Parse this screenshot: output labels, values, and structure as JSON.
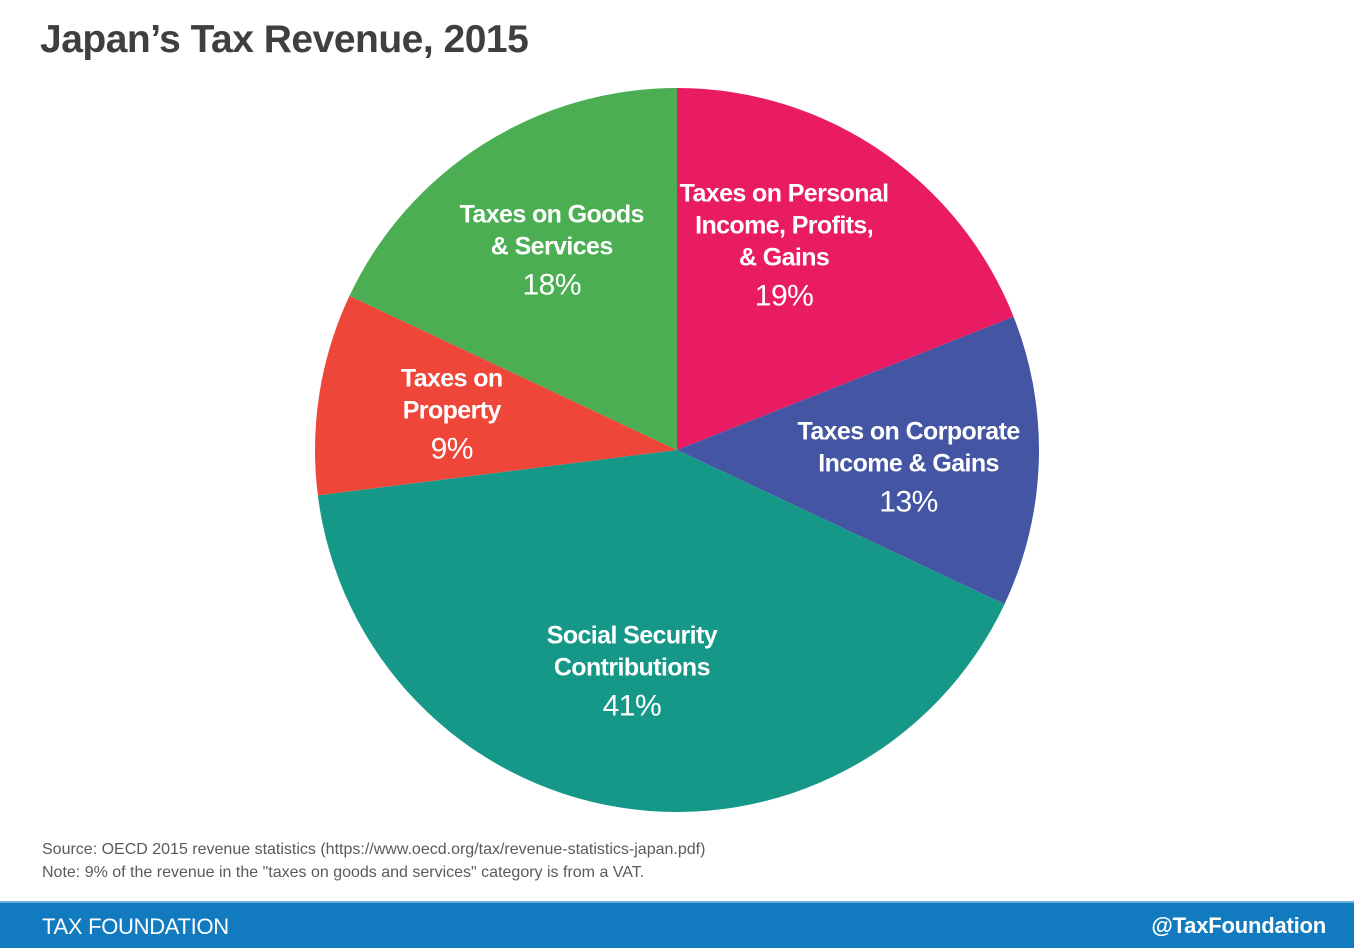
{
  "title": "Japan’s Tax Revenue, 2015",
  "chart_data": {
    "type": "pie",
    "title": "Japan’s Tax Revenue, 2015",
    "start_angle": "12 o'clock",
    "direction": "clockwise",
    "unit": "%",
    "slices": [
      {
        "label_lines": [
          "Taxes on Personal",
          "Income, Profits,",
          "& Gains"
        ],
        "label": "Taxes on Personal Income, Profits, & Gains",
        "value": 19,
        "value_label": "19%",
        "color": "#e91c63"
      },
      {
        "label_lines": [
          "Taxes on Corporate",
          "Income & Gains"
        ],
        "label": "Taxes on Corporate Income & Gains",
        "value": 13,
        "value_label": "13%",
        "color": "#4355a3"
      },
      {
        "label_lines": [
          "Social Security",
          "Contributions"
        ],
        "label": "Social Security Contributions",
        "value": 41,
        "value_label": "41%",
        "color": "#169889"
      },
      {
        "label_lines": [
          "Taxes on",
          "Property"
        ],
        "label": "Taxes on Property",
        "value": 9,
        "value_label": "9%",
        "color": "#ee473a"
      },
      {
        "label_lines": [
          "Taxes on Goods",
          "& Services"
        ],
        "label": "Taxes on Goods & Services",
        "value": 18,
        "value_label": "18%",
        "color": "#4bae52"
      }
    ]
  },
  "notes": {
    "source": "Source: OECD 2015 revenue statistics (https://www.oecd.org/tax/revenue-statistics-japan.pdf)",
    "note": "Note: 9% of the revenue in the \"taxes on goods and services\" category is from a VAT."
  },
  "footer": {
    "brand": "TAX FOUNDATION",
    "handle": "@TaxFoundation",
    "color": "#127bc0"
  }
}
